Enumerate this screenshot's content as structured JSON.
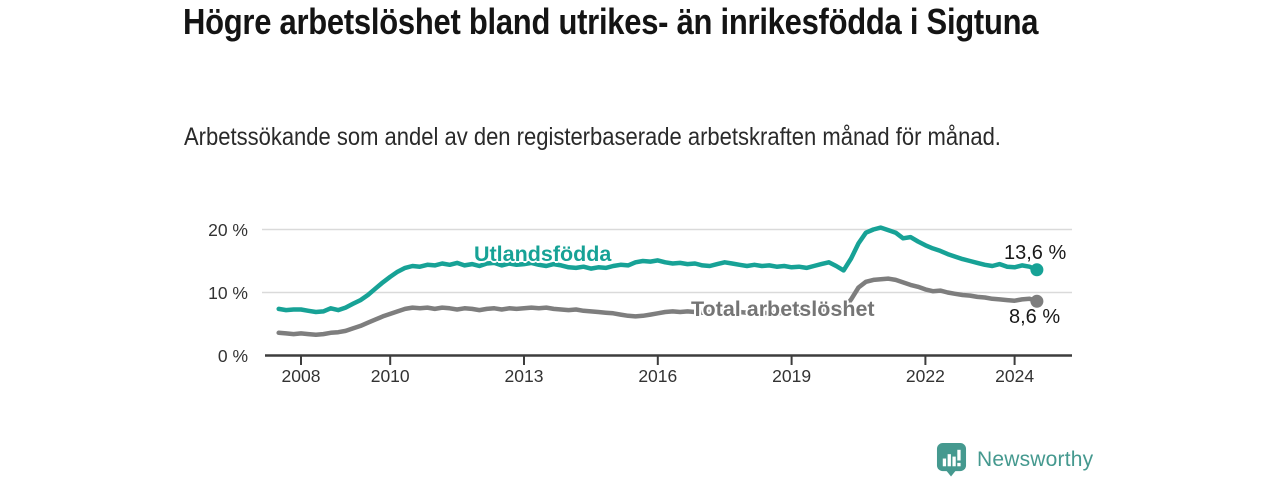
{
  "header": {
    "title": "Högre arbetslöshet bland utrikes- än inrikesfödda i Sigtuna",
    "subtitle": "Arbetssökande som andel av den registerbaserade arbetskraften månad för månad."
  },
  "colors": {
    "utlandsfodda": "#17a296",
    "total": "#7e7e7e",
    "total_label": "#757575",
    "axis": "#3d3d3d",
    "gridline": "#dadada",
    "brand_teal": "#45998f"
  },
  "chart_data": {
    "type": "line",
    "title": "Högre arbetslöshet bland utrikes- än inrikesfödda i Sigtuna",
    "xlabel": "",
    "ylabel": "",
    "x_unit": "year",
    "x_start": 2007.5,
    "x_step": 0.1666667,
    "x_end": 2024.5,
    "ylim": [
      0,
      21
    ],
    "grid": "horizontal",
    "legend_position": "inline-labels",
    "xticks": [
      2008,
      2010,
      2013,
      2016,
      2019,
      2022,
      2024
    ],
    "yticks": [
      0,
      10,
      20
    ],
    "ytick_labels": [
      "0 %",
      "10 %",
      "20 %"
    ],
    "series": [
      {
        "name": "Utlandsfödda",
        "color": "#17a296",
        "end_label": "13,6 %",
        "end_value": 13.6,
        "values": [
          7.4,
          7.2,
          7.3,
          7.3,
          7.1,
          6.9,
          7.0,
          7.5,
          7.2,
          7.6,
          8.2,
          8.8,
          9.6,
          10.6,
          11.6,
          12.5,
          13.3,
          13.9,
          14.2,
          14.1,
          14.4,
          14.3,
          14.6,
          14.4,
          14.7,
          14.3,
          14.5,
          14.2,
          14.6,
          14.7,
          14.3,
          14.6,
          14.4,
          14.5,
          14.7,
          14.4,
          14.2,
          14.5,
          14.3,
          14.0,
          13.9,
          14.1,
          13.8,
          14.0,
          13.9,
          14.2,
          14.4,
          14.3,
          14.8,
          15.0,
          14.9,
          15.1,
          14.8,
          14.6,
          14.7,
          14.5,
          14.6,
          14.3,
          14.2,
          14.5,
          14.8,
          14.6,
          14.4,
          14.2,
          14.4,
          14.2,
          14.3,
          14.1,
          14.2,
          14.0,
          14.1,
          13.9,
          14.2,
          14.5,
          14.8,
          14.2,
          13.5,
          15.4,
          17.8,
          19.5,
          20.0,
          20.3,
          19.9,
          19.5,
          18.6,
          18.8,
          18.1,
          17.5,
          17.0,
          16.6,
          16.1,
          15.7,
          15.3,
          15.0,
          14.7,
          14.4,
          14.2,
          14.5,
          14.1,
          14.0,
          14.3,
          14.1,
          13.6
        ]
      },
      {
        "name": "Total arbetslöshet",
        "color": "#7e7e7e",
        "end_label": "8,6 %",
        "end_value": 8.6,
        "values": [
          3.6,
          3.5,
          3.4,
          3.5,
          3.4,
          3.3,
          3.4,
          3.6,
          3.7,
          3.9,
          4.3,
          4.7,
          5.2,
          5.7,
          6.2,
          6.6,
          7.0,
          7.4,
          7.6,
          7.5,
          7.6,
          7.4,
          7.6,
          7.5,
          7.3,
          7.5,
          7.4,
          7.2,
          7.4,
          7.5,
          7.3,
          7.5,
          7.4,
          7.5,
          7.6,
          7.5,
          7.6,
          7.4,
          7.3,
          7.2,
          7.3,
          7.1,
          7.0,
          6.9,
          6.8,
          6.7,
          6.5,
          6.3,
          6.2,
          6.3,
          6.5,
          6.7,
          6.9,
          7.0,
          6.9,
          7.0,
          6.9,
          6.8,
          6.9,
          7.0,
          6.9,
          6.8,
          6.9,
          6.8,
          6.9,
          6.8,
          6.7,
          6.8,
          6.7,
          6.8,
          6.9,
          6.8,
          7.0,
          7.1,
          7.2,
          7.0,
          7.3,
          8.9,
          10.8,
          11.7,
          12.0,
          12.1,
          12.2,
          12.0,
          11.6,
          11.2,
          10.9,
          10.5,
          10.2,
          10.3,
          10.0,
          9.8,
          9.6,
          9.5,
          9.3,
          9.2,
          9.0,
          8.9,
          8.8,
          8.7,
          8.9,
          9.0,
          8.6
        ]
      }
    ]
  },
  "footer": {
    "brand": "Newsworthy"
  }
}
